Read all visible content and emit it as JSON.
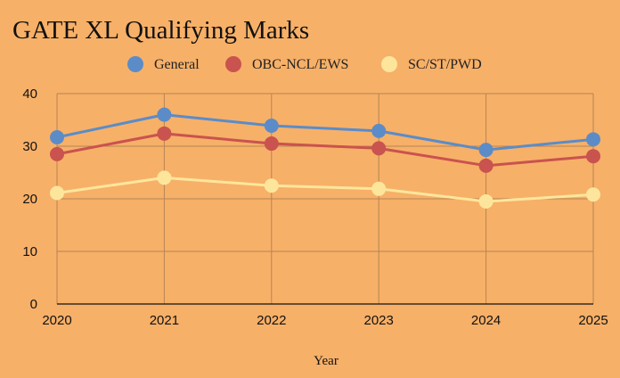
{
  "chart_data": {
    "type": "line",
    "title": "GATE XL Qualifying Marks",
    "xlabel": "Year",
    "ylabel": "",
    "x": [
      "2020",
      "2021",
      "2022",
      "2023",
      "2024",
      "2025"
    ],
    "ylim": [
      0,
      40
    ],
    "yticks": [
      0,
      10,
      20,
      30,
      40
    ],
    "grid": true,
    "legend": "top",
    "series": [
      {
        "name": "General",
        "color": "#5b8cc8",
        "values": [
          31.7,
          36.0,
          33.9,
          32.9,
          29.3,
          31.3
        ]
      },
      {
        "name": "OBC-NCL/EWS",
        "color": "#c9534e",
        "values": [
          28.5,
          32.4,
          30.5,
          29.6,
          26.3,
          28.1
        ]
      },
      {
        "name": "SC/ST/PWD",
        "color": "#fde69c",
        "values": [
          21.1,
          24.0,
          22.5,
          21.9,
          19.5,
          20.8
        ]
      }
    ]
  }
}
